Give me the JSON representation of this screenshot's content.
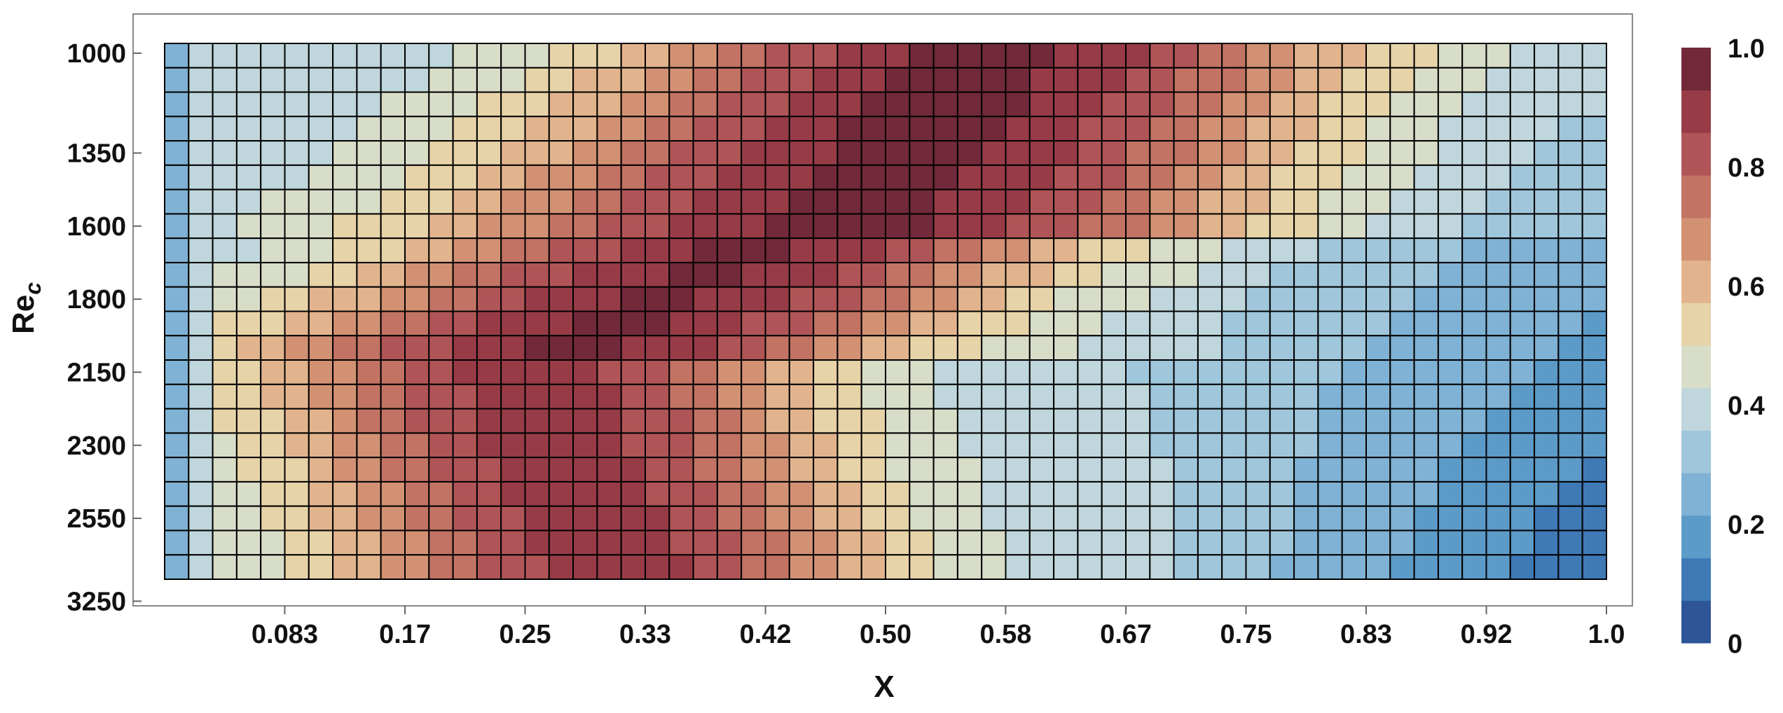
{
  "chart_data": {
    "type": "heatmap",
    "title": "",
    "xlabel": "X",
    "ylabel": "Re",
    "ylabel_subscript": "c",
    "xlim": [
      0,
      1.0
    ],
    "x_ticks": [
      "0.083",
      "0.17",
      "0.25",
      "0.33",
      "0.42",
      "0.50",
      "0.58",
      "0.67",
      "0.75",
      "0.83",
      "0.92",
      "1.0"
    ],
    "x_tick_values": [
      0.0833,
      0.1667,
      0.25,
      0.3333,
      0.4167,
      0.5,
      0.5833,
      0.6667,
      0.75,
      0.8333,
      0.9167,
      1.0
    ],
    "y_ticks": [
      "1000",
      "1350",
      "1600",
      "1800",
      "2150",
      "2300",
      "2550",
      "3250"
    ],
    "y_tick_rows": [
      0,
      4.5,
      7.5,
      10.5,
      13.5,
      16.5,
      19.5,
      22.5
    ],
    "grid_cols": 60,
    "grid_rows": 22,
    "colorbar": {
      "ticks": [
        "0",
        "0.2",
        "0.4",
        "0.6",
        "0.8",
        "1.0"
      ],
      "levels": 14,
      "colors": [
        "#2d5597",
        "#3f7ab7",
        "#5c9bc8",
        "#7fb2d4",
        "#a0c6db",
        "#bed6dc",
        "#d8ddc8",
        "#e7d3a8",
        "#e2b48e",
        "#d39173",
        "#c27364",
        "#b05557",
        "#973c47",
        "#72293a"
      ]
    },
    "key_points": [
      {
        "x": 0.0,
        "row": 0,
        "value": 0.22
      },
      {
        "x": 0.6,
        "row": 2,
        "value": 0.97
      },
      {
        "x": 0.25,
        "row": 13,
        "value": 0.95
      },
      {
        "x": 0.97,
        "row": 20,
        "value": 0.18
      }
    ],
    "description_of_values": "Cell values range 0 to 1; leftmost column low (~0.2-0.4); high values (~0.9-1.0) centered near X≈0.5-0.6 for low Re and shift toward X≈0.2-0.4 for higher Re; lower-right region low (~0.2-0.3)."
  }
}
